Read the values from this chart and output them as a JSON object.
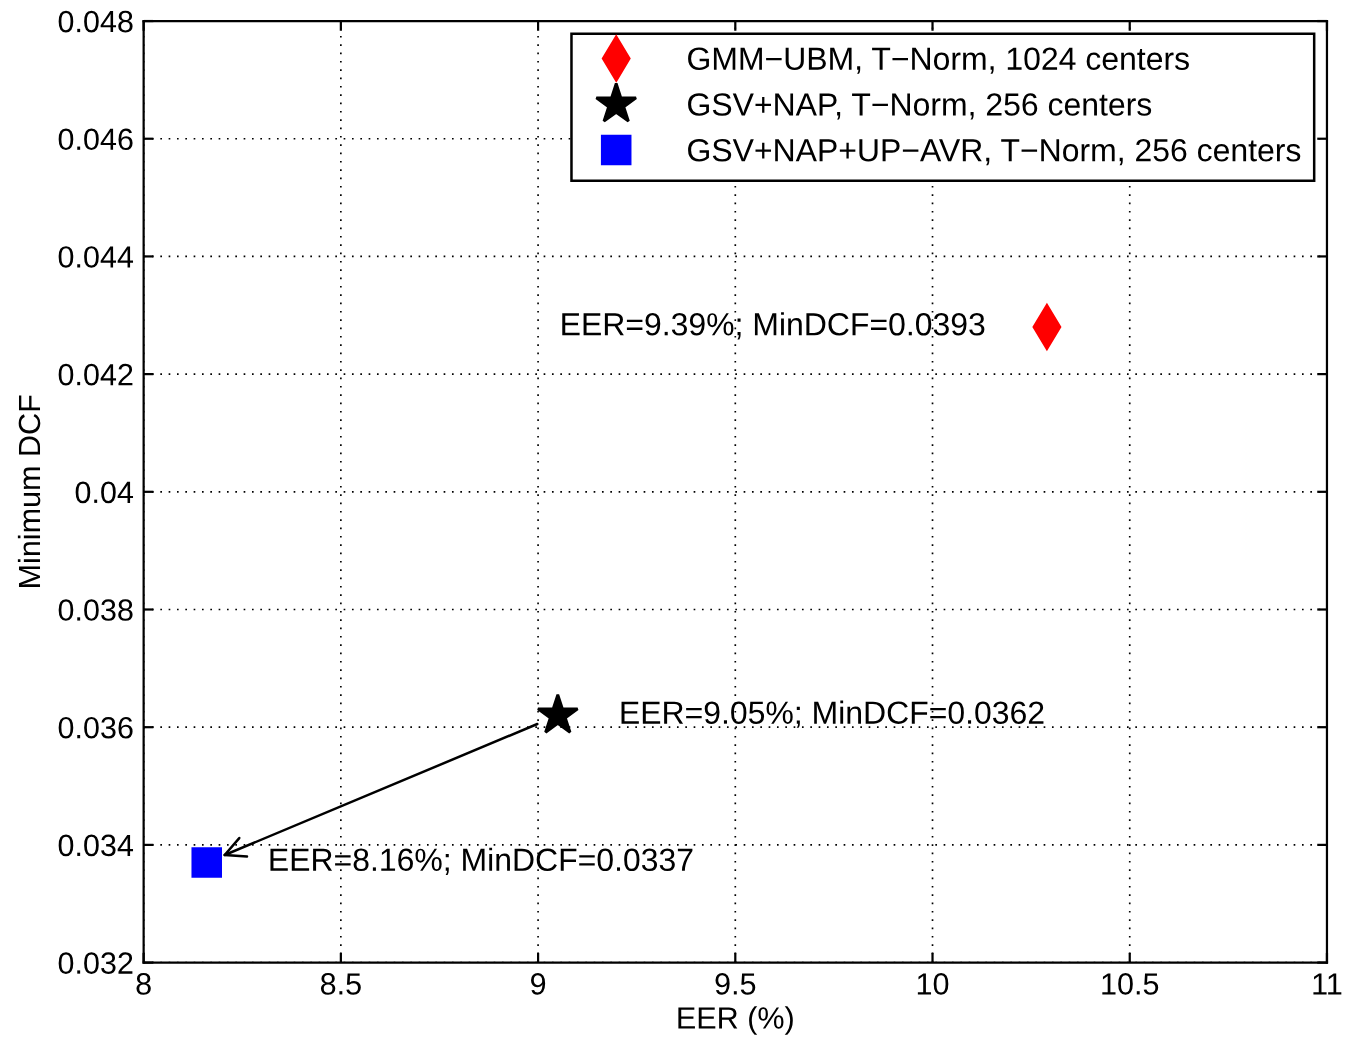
{
  "chart_data": {
    "type": "scatter",
    "xlabel": "EER (%)",
    "ylabel": "Minimum DCF",
    "xlim": [
      8,
      11
    ],
    "xticks": [
      8,
      8.5,
      9,
      9.5,
      10,
      10.5,
      11
    ],
    "ylim": [
      0.032,
      0.048
    ],
    "yticks": [
      {
        "value": 0.032,
        "label": "0.032"
      },
      {
        "value": 0.034,
        "label": "0.034"
      },
      {
        "value": 0.036,
        "label": "0.036"
      },
      {
        "value": 0.038,
        "label": "0.038"
      },
      {
        "value": 0.04,
        "label": "0.04"
      },
      {
        "value": 0.042,
        "label": "0.042"
      },
      {
        "value": 0.044,
        "label": "0.044"
      },
      {
        "value": 0.046,
        "label": "0.046"
      },
      {
        "value": 0.048,
        "label": "0.048"
      }
    ],
    "grid": true,
    "legend": "top right",
    "series": [
      {
        "name": "GMM−UBM, T−Norm, 1024 centers",
        "color": "#ff0000",
        "marker": "diamond",
        "x": [
          10.29
        ],
        "values": [
          0.0428
        ]
      },
      {
        "name": "GSV+NAP, T−Norm, 256 centers",
        "color": "#000000",
        "marker": "star",
        "x": [
          9.05
        ],
        "values": [
          0.0362
        ]
      },
      {
        "name": "GSV+NAP+UP−AVR, T−Norm, 256 centers",
        "color": "#0000ff",
        "marker": "square",
        "x": [
          8.16
        ],
        "values": [
          0.0337
        ]
      }
    ],
    "annotations": [
      {
        "text": "EER=9.39%; MinDCF=0.0393",
        "x": 10.29,
        "y": 0.0428
      },
      {
        "text": "EER=9.05%; MinDCF=0.0362",
        "x": 9.05,
        "y": 0.0362
      },
      {
        "text": "EER=8.16%; MinDCF=0.0337",
        "x": 8.16,
        "y": 0.0337
      }
    ]
  }
}
